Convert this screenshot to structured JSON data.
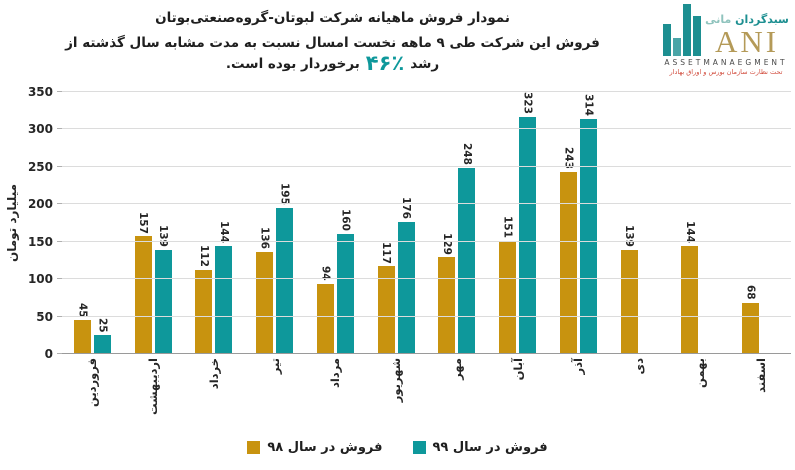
{
  "header": {
    "title": "نمودار فروش ماهیانه شرکت لبوتان-گروه‌صنعتی‌بوتان",
    "subtitle_before": "فروش این شرکت طی ۹ ماهه نخست امسال نسبت به مدت مشابه سال گذشته از رشد",
    "subtitle_highlight": "٪۴۶",
    "subtitle_after": "برخوردار بوده است."
  },
  "logo": {
    "brand_fa_1": "سبدگردان",
    "brand_fa_2": "مانی",
    "brand_en": "ANI",
    "subtext_en": "ASSETMANAEGMENT",
    "subtext_fa": "تحت نظارت سازمان بورس و اوراق بهادار",
    "bar_heights": [
      32,
      18,
      52,
      40
    ]
  },
  "chart_data": {
    "type": "bar",
    "title": "نمودار فروش ماهیانه شرکت لبوتان-گروه‌صنعتی‌بوتان",
    "ylabel": "میلیارد تومان",
    "ylim": [
      0,
      350
    ],
    "yticks": [
      0,
      50,
      100,
      150,
      200,
      250,
      300,
      350
    ],
    "grid": "horizontal",
    "legend_position": "bottom",
    "categories": [
      "فروردین",
      "اردیبهشت",
      "خرداد",
      "تیر",
      "مرداد",
      "شهریور",
      "مهر",
      "آبان",
      "آذر",
      "دی",
      "بهمن",
      "اسفند"
    ],
    "series": [
      {
        "name": "فروش در سال ۹۸",
        "color": "#C8930F",
        "values": [
          45,
          157,
          112,
          136,
          94,
          117,
          129,
          151,
          243,
          139,
          144,
          68
        ]
      },
      {
        "name": "فروش در سال ۹۹",
        "color": "#0E989B",
        "values": [
          25,
          139,
          144,
          195,
          160,
          176,
          248,
          323,
          314,
          null,
          null,
          null
        ]
      }
    ]
  }
}
